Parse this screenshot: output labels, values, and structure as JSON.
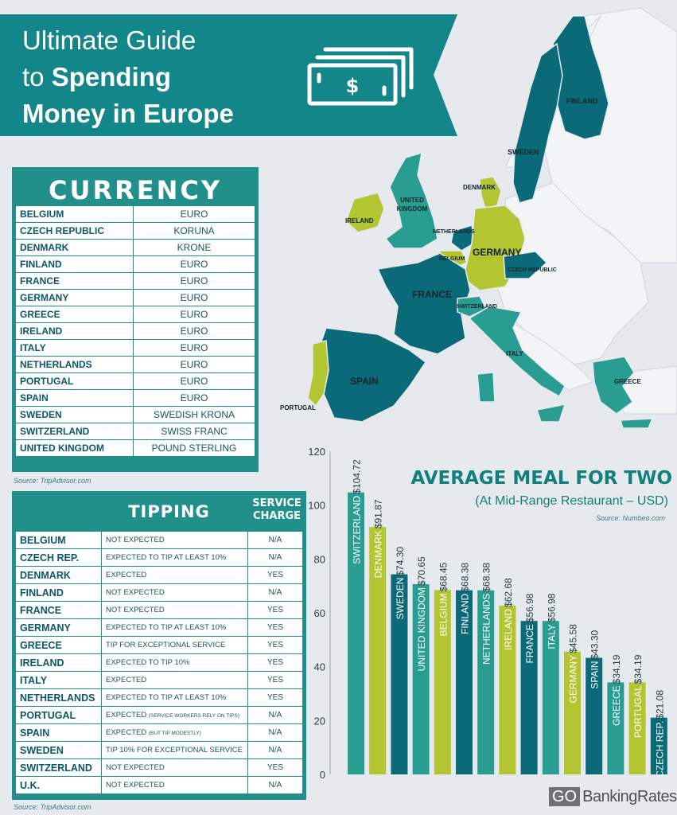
{
  "header": {
    "title_line1": "Ultimate Guide",
    "title_line2_prefix": "to ",
    "title_line2_bold": "Spending",
    "title_line3": "Money in Europe"
  },
  "colors": {
    "teal_dark": "#0b6a78",
    "teal": "#2a9d92",
    "lime": "#b3c531",
    "background": "#e6e9ee"
  },
  "map": {
    "labels": {
      "finland": "FINLAND",
      "sweden": "SWEDEN",
      "denmark": "DENMARK",
      "united_kingdom": "UNITED KINGDOM",
      "ireland": "IRELAND",
      "netherlands": "NETHERLANDS",
      "germany": "GERMANY",
      "belgium": "BELGIUM",
      "czech": "CZECH REPUBLIC",
      "france": "FRANCE",
      "switzerland": "SWITZERLAND",
      "italy": "ITALY",
      "spain": "SPAIN",
      "portugal": "PORTUGAL",
      "greece": "GREECE"
    }
  },
  "currency": {
    "title": "CURRENCY",
    "rows": [
      {
        "country": "BELGIUM",
        "currency": "EURO"
      },
      {
        "country": "CZECH REPUBLIC",
        "currency": "KORUNA"
      },
      {
        "country": "DENMARK",
        "currency": "KRONE"
      },
      {
        "country": "FINLAND",
        "currency": "EURO"
      },
      {
        "country": "FRANCE",
        "currency": "EURO"
      },
      {
        "country": "GERMANY",
        "currency": "EURO"
      },
      {
        "country": "GREECE",
        "currency": "EURO"
      },
      {
        "country": "IRELAND",
        "currency": "EURO"
      },
      {
        "country": "ITALY",
        "currency": "EURO"
      },
      {
        "country": "NETHERLANDS",
        "currency": "EURO"
      },
      {
        "country": "PORTUGAL",
        "currency": "EURO"
      },
      {
        "country": "SPAIN",
        "currency": "EURO"
      },
      {
        "country": "SWEDEN",
        "currency": "SWEDISH KRONA"
      },
      {
        "country": "SWITZERLAND",
        "currency": "SWISS FRANC"
      },
      {
        "country": "UNITED KINGDOM",
        "currency": "POUND STERLING"
      }
    ],
    "source": "Source: TripAdvisor.com"
  },
  "tipping": {
    "title": "TIPPING",
    "service_title_line1": "SERVICE",
    "service_title_line2": "CHARGE",
    "rows": [
      {
        "country": "BELGIUM",
        "tip": "NOT EXPECTED",
        "note": "",
        "service": "N/A"
      },
      {
        "country": "CZECH REP.",
        "tip": "EXPECTED TO TIP AT LEAST 10%",
        "note": "",
        "service": "N/A"
      },
      {
        "country": "DENMARK",
        "tip": "EXPECTED",
        "note": "",
        "service": "YES"
      },
      {
        "country": "FINLAND",
        "tip": "NOT EXPECTED",
        "note": "",
        "service": "N/A"
      },
      {
        "country": "FRANCE",
        "tip": "NOT EXPECTED",
        "note": "",
        "service": "YES"
      },
      {
        "country": "GERMANY",
        "tip": "EXPECTED TO TIP AT LEAST 10%",
        "note": "",
        "service": "YES"
      },
      {
        "country": "GREECE",
        "tip": "TIP FOR EXCEPTIONAL SERVICE",
        "note": "",
        "service": "YES"
      },
      {
        "country": "IRELAND",
        "tip": "EXPECTED TO TIP 10%",
        "note": "",
        "service": "YES"
      },
      {
        "country": "ITALY",
        "tip": "EXPECTED",
        "note": "",
        "service": "YES"
      },
      {
        "country": "NETHERLANDS",
        "tip": "EXPECTED TO TIP AT LEAST 10%",
        "note": "",
        "service": "YES"
      },
      {
        "country": "PORTUGAL",
        "tip": "EXPECTED",
        "note": "(SERVICE WORKERS RELY ON TIPS)",
        "service": "N/A"
      },
      {
        "country": "SPAIN",
        "tip": "EXPECTED",
        "note": "(BUT TIP MODESTLY)",
        "service": "N/A"
      },
      {
        "country": "SWEDEN",
        "tip": "TIP 10% FOR EXCEPTIONAL SERVICE",
        "note": "",
        "service": "N/A"
      },
      {
        "country": "SWITZERLAND",
        "tip": "NOT EXPECTED",
        "note": "",
        "service": "YES"
      },
      {
        "country": "U.K.",
        "tip": "NOT EXPECTED",
        "note": "",
        "service": "N/A"
      }
    ],
    "source": "Source: TripAdvisor.com"
  },
  "chart_data": {
    "type": "bar",
    "title": "AVERAGE MEAL FOR TWO",
    "subtitle": "(At Mid-Range Restaurant – USD)",
    "source": "Source: Numbeo.com",
    "categories": [
      "SWITZERLAND",
      "DENMARK",
      "SWEDEN",
      "UNITED KINGDOM",
      "BELGIUM",
      "FINLAND",
      "NETHERLANDS",
      "IRELAND",
      "FRANCE",
      "ITALY",
      "GERMANY",
      "SPAIN",
      "GREECE",
      "PORTUGAL",
      "CZECH REP."
    ],
    "values": [
      104.72,
      91.87,
      74.3,
      70.65,
      68.45,
      68.38,
      68.38,
      62.68,
      56.98,
      56.98,
      45.58,
      43.3,
      34.19,
      34.19,
      21.08
    ],
    "value_labels": [
      "$104.72",
      "$91.87",
      "$74.30",
      "$70.65",
      "$68.45",
      "$68.38",
      "$68.38",
      "$62.68",
      "$56.98",
      "$56.98",
      "$45.58",
      "$43.30",
      "$34.19",
      "$34.19",
      "$21.08"
    ],
    "bar_colors": [
      "#2a9d92",
      "#b3c531",
      "#0b6a78",
      "#2a9d92",
      "#b3c531",
      "#0b6a78",
      "#2a9d92",
      "#b3c531",
      "#0b6a78",
      "#2a9d92",
      "#b3c531",
      "#0b6a78",
      "#2a9d92",
      "#b3c531",
      "#0b6a78"
    ],
    "ylim": [
      0,
      120
    ],
    "yticks": [
      0,
      20,
      40,
      60,
      80,
      100,
      120
    ],
    "xlabel": "",
    "ylabel": "",
    "grid": false
  },
  "footer": {
    "logo_go": "GO",
    "logo_text": "BankingRates"
  }
}
